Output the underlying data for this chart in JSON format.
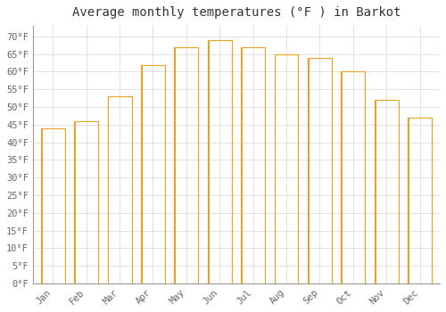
{
  "title": "Average monthly temperatures (°F ) in Barkot",
  "months": [
    "Jan",
    "Feb",
    "Mar",
    "Apr",
    "May",
    "Jun",
    "Jul",
    "Aug",
    "Sep",
    "Oct",
    "Nov",
    "Dec"
  ],
  "values": [
    44,
    46,
    53,
    62,
    67,
    69,
    67,
    65,
    64,
    60,
    52,
    47
  ],
  "bar_color_center": "#FFD060",
  "bar_color_edge": "#F0A020",
  "background_color": "#FFFFFF",
  "grid_color": "#DDDDDD",
  "ylim": [
    0,
    73
  ],
  "yticks": [
    0,
    5,
    10,
    15,
    20,
    25,
    30,
    35,
    40,
    45,
    50,
    55,
    60,
    65,
    70
  ],
  "ytick_labels": [
    "0°F",
    "5°F",
    "10°F",
    "15°F",
    "20°F",
    "25°F",
    "30°F",
    "35°F",
    "40°F",
    "45°F",
    "50°F",
    "55°F",
    "60°F",
    "65°F",
    "70°F"
  ],
  "title_fontsize": 10,
  "tick_fontsize": 7.5,
  "figsize": [
    5.0,
    3.5
  ],
  "dpi": 100
}
